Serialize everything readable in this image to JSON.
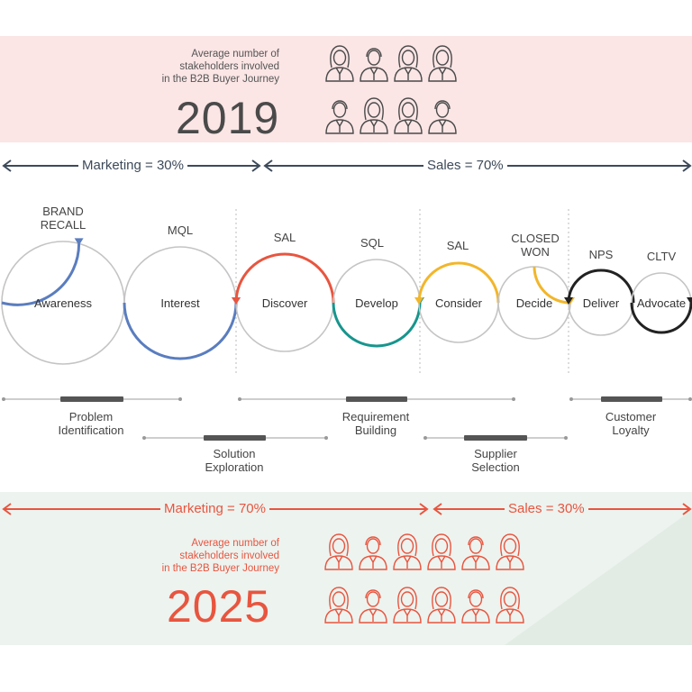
{
  "header": {
    "stakeholder_label": [
      "Average number of",
      "stakeholders involved",
      "in the B2B Buyer Journey"
    ],
    "year": "2019",
    "person_count": 8,
    "color": "#4a4a4a",
    "background": "#fbe5e5"
  },
  "split_2019": {
    "marketing": "Marketing = 30%",
    "sales": "Sales = 70%",
    "color": "#3d4a5a"
  },
  "journey": {
    "stages": [
      {
        "name": "Awareness",
        "label": "BRAND RECALL",
        "label_lines": [
          "BRAND",
          "RECALL"
        ],
        "accent": "#5a7dbf"
      },
      {
        "name": "Interest",
        "label": "MQL",
        "label_lines": [
          "MQL"
        ],
        "accent": "#5a7dbf"
      },
      {
        "name": "Discover",
        "label": "SAL",
        "label_lines": [
          "SAL"
        ],
        "accent": "#e8553f"
      },
      {
        "name": "Develop",
        "label": "SQL",
        "label_lines": [
          "SQL"
        ],
        "accent": "#17958d"
      },
      {
        "name": "Consider",
        "label": "SAL",
        "label_lines": [
          "SAL"
        ],
        "accent": "#f2b62b"
      },
      {
        "name": "Decide",
        "label": "CLOSED WON",
        "label_lines": [
          "CLOSED",
          "WON"
        ],
        "accent": "#f2b62b"
      },
      {
        "name": "Deliver",
        "label": "NPS",
        "label_lines": [
          "NPS"
        ],
        "accent": "#222222"
      },
      {
        "name": "Advocate",
        "label": "CLTV",
        "label_lines": [
          "CLTV"
        ],
        "accent": "#222222"
      }
    ],
    "phases": [
      {
        "name": "Problem Identification",
        "lines": [
          "Problem",
          "Identification"
        ]
      },
      {
        "name": "Solution Exploration",
        "lines": [
          "Solution",
          "Exploration"
        ]
      },
      {
        "name": "Requirement Building",
        "lines": [
          "Requirement",
          "Building"
        ]
      },
      {
        "name": "Supplier Selection",
        "lines": [
          "Supplier",
          "Selection"
        ]
      },
      {
        "name": "Customer Loyalty",
        "lines": [
          "Customer",
          "Loyalty"
        ]
      }
    ]
  },
  "split_2025": {
    "marketing": "Marketing = 70%",
    "sales": "Sales = 30%",
    "color": "#e8553f"
  },
  "footer": {
    "stakeholder_label": [
      "Average number of",
      "stakeholders involved",
      "in the B2B Buyer Journey"
    ],
    "year": "2025",
    "person_count": 12,
    "color": "#e8553f",
    "background": "#edf3ef"
  }
}
